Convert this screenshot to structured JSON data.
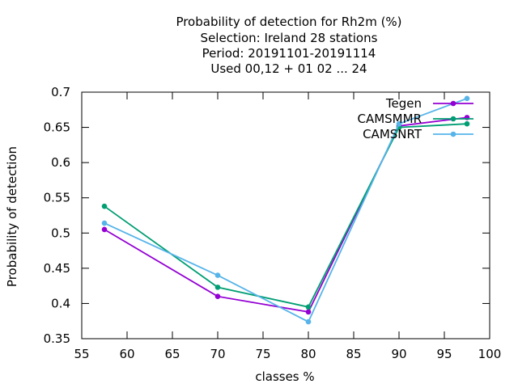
{
  "chart_data": {
    "type": "line",
    "title_lines": [
      "Probability of detection  for Rh2m (%)",
      "Selection: Ireland     28 stations",
      "Period: 20191101-20191114",
      "Used  00,12  + 01 02 ... 24"
    ],
    "xlabel": "classes %",
    "ylabel": "Probability of detection",
    "xlim": [
      55,
      100
    ],
    "ylim": [
      0.35,
      0.7
    ],
    "xticks": [
      "55",
      "60",
      "65",
      "70",
      "75",
      "80",
      "85",
      "90",
      "95",
      "100"
    ],
    "yticks": [
      "0.35",
      "0.4",
      "0.45",
      "0.5",
      "0.55",
      "0.6",
      "0.65",
      "0.7"
    ],
    "grid": false,
    "legend_position": "top-right",
    "series": [
      {
        "name": "Tegen",
        "color": "#9400d3",
        "x": [
          57.5,
          70,
          80,
          90,
          97.5
        ],
        "y": [
          0.505,
          0.41,
          0.388,
          0.652,
          0.664
        ]
      },
      {
        "name": "CAMSMMR",
        "color": "#009e73",
        "x": [
          57.5,
          70,
          80,
          90,
          97.5
        ],
        "y": [
          0.538,
          0.423,
          0.395,
          0.65,
          0.655
        ]
      },
      {
        "name": "CAMSNRT",
        "color": "#56b4e9",
        "x": [
          57.5,
          70,
          80,
          90,
          97.5
        ],
        "y": [
          0.514,
          0.44,
          0.374,
          0.655,
          0.691
        ]
      }
    ]
  }
}
